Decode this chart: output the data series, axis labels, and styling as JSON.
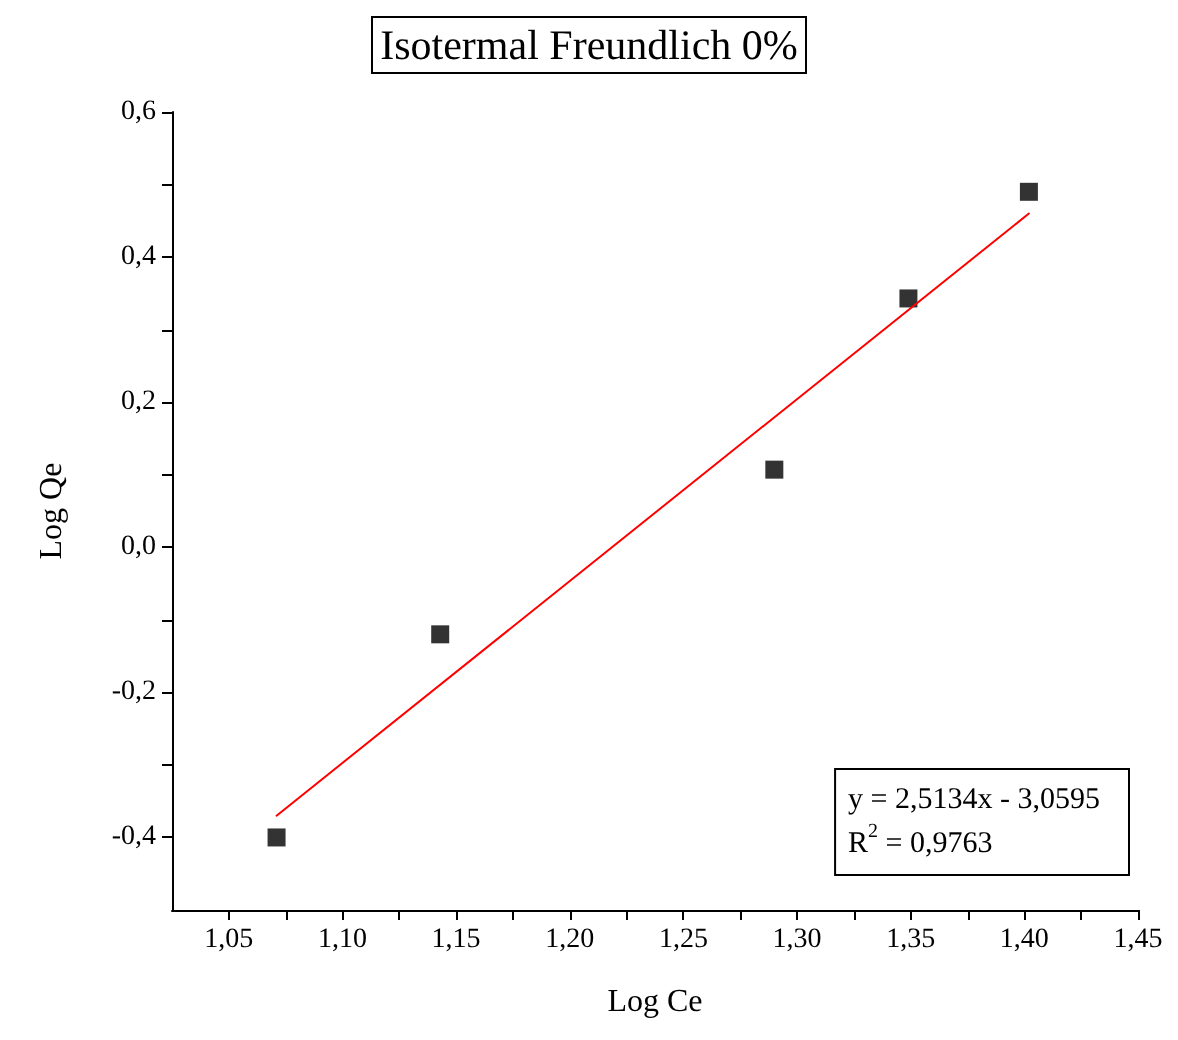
{
  "chart_data": {
    "type": "scatter",
    "title": "Isotermal Freundlich 0%",
    "xlabel": "Log Ce",
    "ylabel": "Log Qe",
    "xlim": [
      1.025,
      1.45
    ],
    "xticks": [
      {
        "value": 1.05,
        "label": "1,05"
      },
      {
        "value": 1.075,
        "label": null
      },
      {
        "value": 1.1,
        "label": "1,10"
      },
      {
        "value": 1.125,
        "label": null
      },
      {
        "value": 1.15,
        "label": "1,15"
      },
      {
        "value": 1.175,
        "label": null
      },
      {
        "value": 1.2,
        "label": "1,20"
      },
      {
        "value": 1.225,
        "label": null
      },
      {
        "value": 1.25,
        "label": "1,25"
      },
      {
        "value": 1.275,
        "label": null
      },
      {
        "value": 1.3,
        "label": "1,30"
      },
      {
        "value": 1.325,
        "label": null
      },
      {
        "value": 1.35,
        "label": "1,35"
      },
      {
        "value": 1.375,
        "label": null
      },
      {
        "value": 1.4,
        "label": "1,40"
      },
      {
        "value": 1.425,
        "label": null
      },
      {
        "value": 1.45,
        "label": "1,45"
      }
    ],
    "ylim": [
      -0.5,
      0.6
    ],
    "yticks": [
      {
        "value": -0.4,
        "label": "-0,4"
      },
      {
        "value": -0.3,
        "label": null
      },
      {
        "value": -0.2,
        "label": "-0,2"
      },
      {
        "value": -0.1,
        "label": null
      },
      {
        "value": 0,
        "label": "0,0"
      },
      {
        "value": 0.1,
        "label": null
      },
      {
        "value": 0.2,
        "label": "0,2"
      },
      {
        "value": 0.3,
        "label": null
      },
      {
        "value": 0.4,
        "label": "0,4"
      },
      {
        "value": 0.5,
        "label": null
      },
      {
        "value": 0.6,
        "label": "0,6"
      }
    ],
    "series": [
      {
        "color": "#000000",
        "marker": "square",
        "x": [
          1.071,
          1.143,
          1.29,
          1.349,
          1.402
        ],
        "values": [
          -0.4,
          -0.12,
          0.107,
          0.343,
          0.49
        ]
      },
      {
        "type": "line",
        "color": "#ff0000",
        "marker": "none",
        "line_style": "solid",
        "x": [
          1.071,
          1.402
        ],
        "values": [
          -0.37,
          0.46
        ]
      }
    ],
    "annotations": [
      "y = 2,5134x - 3,0595",
      "R$^{2}$ = 0,9763"
    ],
    "grid": false
  }
}
